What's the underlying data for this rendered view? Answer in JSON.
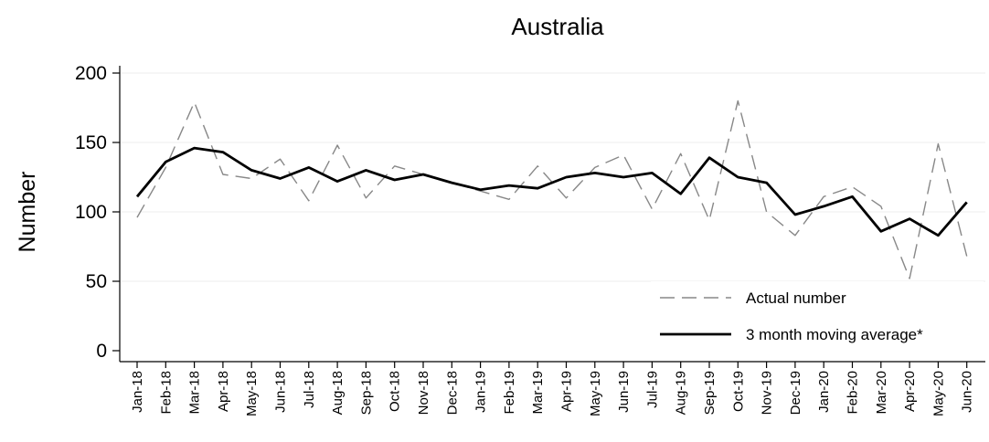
{
  "chart_data": {
    "type": "line",
    "title": "Australia",
    "xlabel": "",
    "ylabel": "Number",
    "ylim": [
      0,
      200
    ],
    "yticks": [
      0,
      50,
      100,
      150,
      200
    ],
    "grid": "horizontal",
    "legend_placement": "bottom-right",
    "categories": [
      "Jan-18",
      "Feb-18",
      "Mar-18",
      "Apr-18",
      "May-18",
      "Jun-18",
      "Jul-18",
      "Aug-18",
      "Sep-18",
      "Oct-18",
      "Nov-18",
      "Dec-18",
      "Jan-19",
      "Feb-19",
      "Mar-19",
      "Apr-19",
      "May-19",
      "Jun-19",
      "Jul-19",
      "Aug-19",
      "Sep-19",
      "Oct-19",
      "Nov-19",
      "Dec-19",
      "Jan-20",
      "Feb-20",
      "Mar-20",
      "Apr-20",
      "May-20",
      "Jun-20"
    ],
    "series": [
      {
        "name": "Actual number",
        "style": "dashed",
        "color": "#888888",
        "values": [
          96,
          132,
          179,
          127,
          124,
          138,
          108,
          148,
          110,
          133,
          127,
          121,
          115,
          109,
          133,
          110,
          132,
          141,
          102,
          142,
          94,
          180,
          100,
          83,
          111,
          118,
          104,
          52,
          149,
          68
        ]
      },
      {
        "name": "3 month moving average*",
        "style": "solid",
        "color": "#000000",
        "values": [
          111,
          136,
          146,
          143,
          130,
          124,
          132,
          122,
          130,
          123,
          127,
          121,
          116,
          119,
          117,
          125,
          128,
          125,
          128,
          113,
          139,
          125,
          121,
          98,
          104,
          111,
          86,
          95,
          83,
          107
        ]
      }
    ]
  }
}
